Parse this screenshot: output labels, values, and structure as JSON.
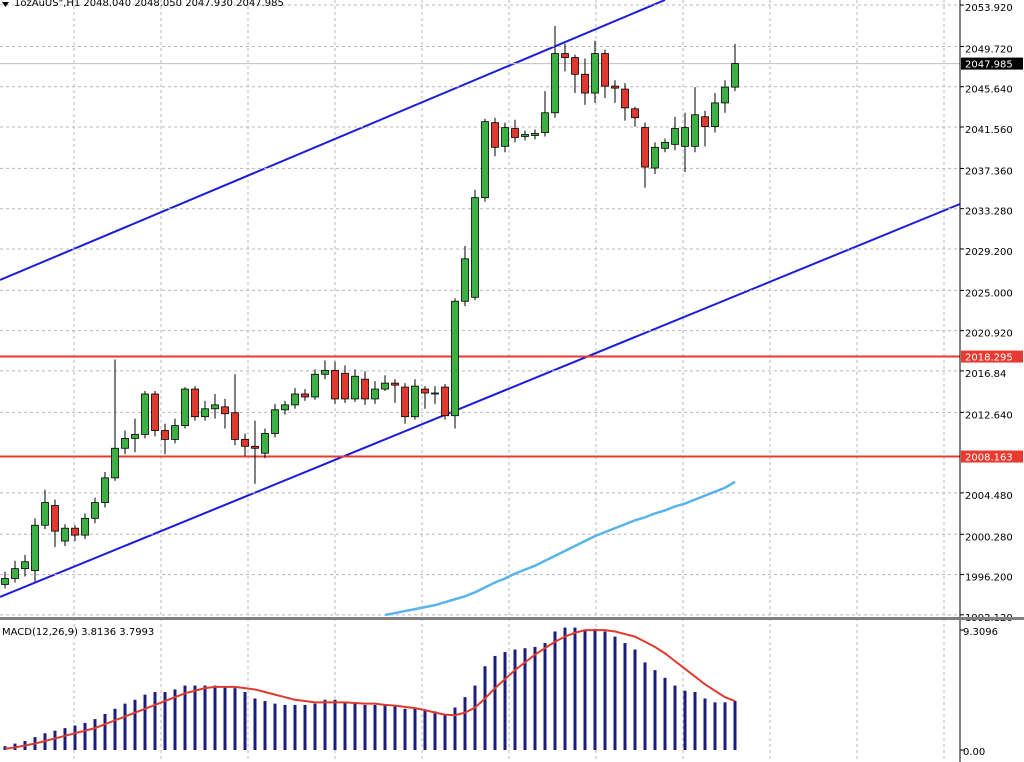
{
  "chart_data": [
    {
      "type": "candlestick",
      "title": "1ozAuUS\",H1  2048.040 2048.050 2047.930 2047.985",
      "open": [
        1995.2,
        1995.8,
        1996.8,
        1996.6,
        2001.2,
        2003.2,
        1999.6,
        2000.9,
        2000.2,
        2001.9,
        2003.5,
        2006.0,
        2009.0,
        2010.0,
        2010.4,
        2014.5,
        2010.8,
        2009.9,
        2011.3,
        2015.0,
        2012.2,
        2013.0,
        2013.2,
        2012.6,
        2009.9,
        2009.2,
        2008.5,
        2010.5,
        2012.9,
        2013.4,
        2014.5,
        2014.2,
        2016.5,
        2016.9,
        2016.6,
        2014.0,
        2016.0,
        2014.0,
        2015.0,
        2015.6,
        2015.2,
        2012.2,
        2015.0,
        2014.6,
        2015.2,
        2012.3,
        2023.9,
        2024.3,
        2034.4,
        2042.0,
        2039.6,
        2041.4,
        2040.6,
        2040.7,
        2041.0,
        2043.0,
        2049.0,
        2048.6,
        2046.9,
        2045.0,
        2049.0,
        2045.7,
        2045.4,
        2043.4,
        2041.5,
        2037.4,
        2039.4,
        2039.8,
        2039.6,
        2039.6,
        2042.6,
        2041.6,
        2044.0,
        2045.6
      ],
      "high": [
        1996.5,
        1997.6,
        1998.2,
        2001.9,
        2004.8,
        2003.8,
        2001.3,
        2001.2,
        2002.4,
        2004.0,
        2006.6,
        2018.0,
        2010.8,
        2012.0,
        2014.8,
        2014.8,
        2011.5,
        2012.0,
        2015.2,
        2015.3,
        2013.8,
        2014.5,
        2014.0,
        2016.5,
        2010.5,
        2011.8,
        2011.0,
        2013.5,
        2013.8,
        2015.1,
        2015.0,
        2017.0,
        2017.9,
        2017.8,
        2017.4,
        2017.0,
        2016.8,
        2015.8,
        2016.4,
        2016.0,
        2015.6,
        2016.0,
        2015.3,
        2015.3,
        2015.5,
        2024.2,
        2029.5,
        2035.2,
        2042.4,
        2042.5,
        2042.0,
        2042.3,
        2041.2,
        2041.3,
        2045.2,
        2051.8,
        2050.0,
        2048.9,
        2048.5,
        2050.3,
        2049.4,
        2046.3,
        2046.0,
        2043.6,
        2042.0,
        2040.0,
        2040.4,
        2042.6,
        2043.0,
        2045.6,
        2043.2,
        2045.0,
        2046.3,
        2050.0
      ],
      "low": [
        1994.8,
        1995.4,
        1996.0,
        1995.5,
        2000.8,
        1999.0,
        1999.1,
        1999.6,
        1999.8,
        2001.4,
        2003.0,
        2005.7,
        2008.4,
        2008.6,
        2010.0,
        2010.2,
        2008.4,
        2009.5,
        2011.0,
        2011.8,
        2011.8,
        2012.0,
        2011.0,
        2009.3,
        2008.2,
        2005.4,
        2008.0,
        2010.1,
        2012.4,
        2013.0,
        2013.8,
        2013.9,
        2016.0,
        2013.5,
        2013.6,
        2013.7,
        2013.4,
        2013.5,
        2014.8,
        2013.6,
        2011.5,
        2011.9,
        2013.0,
        2013.5,
        2011.9,
        2011.0,
        2023.4,
        2024.0,
        2034.0,
        2038.6,
        2039.0,
        2040.0,
        2040.2,
        2040.3,
        2040.6,
        2042.5,
        2047.2,
        2045.0,
        2043.8,
        2044.0,
        2044.5,
        2044.0,
        2042.2,
        2041.6,
        2035.4,
        2036.8,
        2039.0,
        2039.2,
        2037.0,
        2039.0,
        2039.6,
        2041.0,
        2043.0,
        2045.2
      ],
      "close": [
        1995.8,
        1996.8,
        1997.5,
        2001.2,
        2003.5,
        2000.6,
        2000.9,
        2000.2,
        2001.9,
        2003.5,
        2006.0,
        2009.0,
        2010.0,
        2010.4,
        2014.5,
        2010.8,
        2009.9,
        2011.3,
        2015.0,
        2012.2,
        2013.0,
        2013.4,
        2012.5,
        2009.9,
        2009.2,
        2009.0,
        2010.5,
        2012.9,
        2013.4,
        2014.5,
        2014.2,
        2016.5,
        2016.9,
        2014.0,
        2014.0,
        2016.3,
        2014.0,
        2015.0,
        2015.6,
        2015.4,
        2012.2,
        2015.3,
        2014.6,
        2014.6,
        2012.3,
        2023.9,
        2028.2,
        2034.4,
        2042.1,
        2039.5,
        2041.5,
        2040.5,
        2040.8,
        2040.9,
        2043.0,
        2049.0,
        2048.6,
        2046.9,
        2045.0,
        2049.0,
        2045.7,
        2045.5,
        2043.5,
        2042.5,
        2037.5,
        2039.5,
        2040.0,
        2041.4,
        2041.5,
        2042.8,
        2041.6,
        2044.0,
        2045.6,
        2047.985
      ],
      "up_color": "#3cb043",
      "down_color": "#e03a2e",
      "ma": {
        "color": "#5ab4ea",
        "values": [
          null,
          null,
          null,
          null,
          null,
          null,
          null,
          null,
          null,
          null,
          null,
          null,
          null,
          null,
          null,
          null,
          null,
          null,
          null,
          null,
          null,
          null,
          null,
          null,
          null,
          null,
          null,
          null,
          null,
          null,
          null,
          null,
          null,
          null,
          null,
          null,
          null,
          null,
          1992.1,
          1992.3,
          1992.5,
          1992.7,
          1992.9,
          1993.1,
          1993.4,
          1993.7,
          1994.0,
          1994.4,
          1994.9,
          1995.4,
          1995.8,
          1996.3,
          1996.7,
          1997.1,
          1997.6,
          1998.1,
          1998.6,
          1999.1,
          1999.6,
          2000.1,
          2000.5,
          2000.9,
          2001.3,
          2001.7,
          2002.0,
          2002.4,
          2002.7,
          2003.1,
          2003.4,
          2003.8,
          2004.2,
          2004.6,
          2005.0,
          2005.6
        ]
      },
      "hlines": [
        {
          "value": 2018.295,
          "color": "#e83a30"
        },
        {
          "value": 2008.163,
          "color": "#e83a30"
        }
      ],
      "last_price": 2047.985,
      "ylim": [
        1991.9,
        2054.43
      ],
      "yticks": [
        {
          "value": 2053.92,
          "label": "2053.920"
        },
        {
          "value": 2049.72,
          "label": "2049.720"
        },
        {
          "value": 2045.64,
          "label": "2045.640"
        },
        {
          "value": 2041.56,
          "label": "2041.560"
        },
        {
          "value": 2037.36,
          "label": "2037.360"
        },
        {
          "value": 2033.28,
          "label": "2033.280"
        },
        {
          "value": 2029.2,
          "label": "2029.200"
        },
        {
          "value": 2025,
          "label": "2025.000"
        },
        {
          "value": 2020.92,
          "label": "2020.920"
        },
        2016.84,
        {
          "value": 2012.64,
          "label": "2012.640"
        },
        {
          "value": 2004.48,
          "label": "2004.480"
        },
        {
          "value": 2000.28,
          "label": "2000.280"
        },
        {
          "value": 1996.2,
          "label": "1996.200"
        },
        {
          "value": 1992.12,
          "label": "1992.120"
        }
      ],
      "grid": true
    },
    {
      "type": "macd",
      "title": "MACD(12,26,9) 3.8136 3.7993",
      "series": [
        {
          "kind": "bar",
          "color": "#1c1c7a",
          "values": [
            0.3,
            0.5,
            0.7,
            1.0,
            1.3,
            1.5,
            1.7,
            1.9,
            2.1,
            2.4,
            2.8,
            3.2,
            3.6,
            3.9,
            4.3,
            4.5,
            4.5,
            4.7,
            5.0,
            5.0,
            5.0,
            5.0,
            4.9,
            4.8,
            4.5,
            4.0,
            3.8,
            3.6,
            3.5,
            3.5,
            3.5,
            3.6,
            3.9,
            3.9,
            3.7,
            3.7,
            3.5,
            3.5,
            3.5,
            3.4,
            3.2,
            3.2,
            3.1,
            3.0,
            2.7,
            3.3,
            4.1,
            5.0,
            6.5,
            7.3,
            7.6,
            7.8,
            7.9,
            8.0,
            8.3,
            9.2,
            9.5,
            9.5,
            9.3,
            9.4,
            9.2,
            8.8,
            8.3,
            7.8,
            6.8,
            6.2,
            5.6,
            5.0,
            4.6,
            4.5,
            4.0,
            3.7,
            3.7,
            3.8136
          ]
        },
        {
          "kind": "line",
          "color": "#e03a2e",
          "values": [
            0.1,
            0.2,
            0.35,
            0.5,
            0.7,
            0.9,
            1.1,
            1.3,
            1.5,
            1.7,
            2.0,
            2.3,
            2.6,
            2.9,
            3.2,
            3.5,
            3.8,
            4.1,
            4.4,
            4.6,
            4.8,
            4.9,
            4.9,
            4.9,
            4.8,
            4.7,
            4.5,
            4.3,
            4.1,
            3.9,
            3.8,
            3.7,
            3.7,
            3.7,
            3.7,
            3.65,
            3.6,
            3.6,
            3.5,
            3.45,
            3.35,
            3.25,
            3.1,
            2.9,
            2.75,
            2.7,
            2.9,
            3.3,
            4.0,
            4.8,
            5.5,
            6.2,
            6.8,
            7.4,
            7.9,
            8.4,
            8.8,
            9.1,
            9.3,
            9.3,
            9.3,
            9.2,
            9.0,
            8.8,
            8.4,
            8.0,
            7.5,
            6.9,
            6.3,
            5.7,
            5.1,
            4.6,
            4.1,
            3.7993
          ]
        }
      ],
      "ylim": [
        -0.93,
        10.09
      ],
      "yticks": [
        9.3096,
        {
          "value": 0,
          "label": "0.00"
        }
      ]
    }
  ]
}
